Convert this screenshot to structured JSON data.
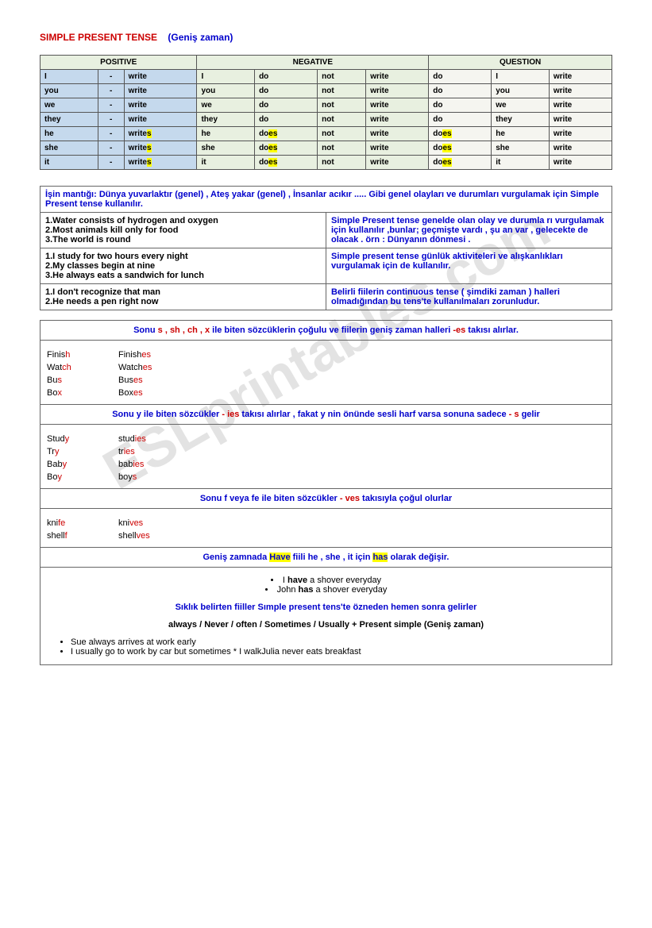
{
  "title": {
    "red": "SIMPLE PRESENT TENSE",
    "blue": "(Geniş zaman)"
  },
  "watermark": "ESLprintables.com",
  "conjTable": {
    "headers": [
      "POSITIVE",
      "NEGATIVE",
      "QUESTION"
    ],
    "rows": [
      {
        "p": [
          "I",
          "-",
          "write"
        ],
        "n": [
          "I",
          "do",
          "not",
          "write"
        ],
        "q": [
          "do",
          "I",
          "write"
        ]
      },
      {
        "p": [
          "you",
          "-",
          "write"
        ],
        "n": [
          "you",
          "do",
          "not",
          "write"
        ],
        "q": [
          "do",
          "you",
          "write"
        ]
      },
      {
        "p": [
          "we",
          "-",
          "write"
        ],
        "n": [
          "we",
          "do",
          "not",
          "write"
        ],
        "q": [
          "do",
          "we",
          "write"
        ]
      },
      {
        "p": [
          "they",
          "-",
          "write"
        ],
        "n": [
          "they",
          "do",
          "not",
          "write"
        ],
        "q": [
          "do",
          "they",
          "write"
        ]
      },
      {
        "p": [
          "he",
          "-",
          "write",
          "s"
        ],
        "n": [
          "he",
          "do",
          "es",
          "not",
          "write"
        ],
        "q": [
          "do",
          "es",
          "he",
          "write"
        ]
      },
      {
        "p": [
          "she",
          "-",
          "write",
          "s"
        ],
        "n": [
          "she",
          "do",
          "es",
          "not",
          "write"
        ],
        "q": [
          "do",
          "es",
          "she",
          "write"
        ]
      },
      {
        "p": [
          "it",
          "-",
          "write",
          "s"
        ],
        "n": [
          "it",
          "do",
          "es",
          "not",
          "write"
        ],
        "q": [
          "do",
          "es",
          "it",
          "write"
        ]
      }
    ]
  },
  "infoHead": "İşin mantığı: Dünya yuvarlaktır (genel) , Ateş yakar (genel) , İnsanlar acıkır ..... Gibi genel olayları ve durumları vurgulamak için Simple Present tense kullanılır.",
  "infoRows": [
    {
      "left": "1.Water consists of hydrogen and oxygen\n2.Most animals kill only for food\n3.The world is round",
      "right": "Simple Present tense genelde olan olay ve durumla rı vurgulamak için kullanılır ,bunlar; geçmişte vardı , şu an var , gelecekte de olacak . örn : Dünyanın dönmesi ."
    },
    {
      "left": "1.I study for two hours every night\n2.My classes begin at nine\n3.He always eats a sandwich for lunch",
      "right": "Simple present tense günlük aktiviteleri ve alışkanlıkları vurgulamak için de kullanılır."
    },
    {
      "left": "1.I don't recognize that man\n2.He needs a pen right now",
      "right": "Belirli fiilerin continuous tense ( şimdiki zaman ) halleri olmadığından bu tens'te kullanılmaları zorunludur."
    }
  ],
  "rule1": {
    "head_a": "Sonu ",
    "head_b": "s , sh , ch , x ",
    "head_c": "ile biten sözcüklerin çoğulu ve fiilerin geniş zaman halleri ",
    "head_d": "-es",
    "head_e": " takısı alırlar.",
    "words": [
      {
        "base": "Finis",
        "baseEnd": "h",
        "form": "Finish",
        "formEnd": "es"
      },
      {
        "base": "Wat",
        "baseEnd": "ch",
        "form": "Watch",
        "formEnd": "es"
      },
      {
        "base": "Bu",
        "baseEnd": "s",
        "form": "Bus",
        "formEnd": "es"
      },
      {
        "base": "Bo",
        "baseEnd": "x",
        "form": "Box",
        "formEnd": "es"
      }
    ]
  },
  "rule2": {
    "head_a": "Sonu y ile biten sözcükler ",
    "head_b": "- ies",
    "head_c": " takısı alırlar , fakat y nin önünde sesli harf varsa sonuna sadece ",
    "head_d": "- s",
    "head_e": " gelir",
    "words": [
      {
        "base": "Stud",
        "baseEnd": "y",
        "form": "stud",
        "formEnd": "ies"
      },
      {
        "base": "Tr",
        "baseEnd": "y",
        "form": "tr",
        "formEnd": "ies"
      },
      {
        "base": "Bab",
        "baseEnd": "y",
        "form": "bab",
        "formEnd": "ies"
      },
      {
        "base": "Bo",
        "baseEnd": "y",
        "form": "boy",
        "formEnd": "s"
      }
    ]
  },
  "rule3": {
    "head_a": "Sonu f veya fe ile biten sözcükler ",
    "head_b": "- ves",
    "head_c": " takısıyla çoğul olurlar",
    "words": [
      {
        "base": "kni",
        "baseEnd": "fe",
        "form": "kni",
        "formEnd": "ves"
      },
      {
        "base": "shell",
        "baseEnd": "f",
        "form": "shell",
        "formEnd": "ves"
      }
    ]
  },
  "rule4": {
    "head_a": "Geniş zamnada ",
    "head_b": "Have",
    "head_c": " fiili he , she , it için ",
    "head_d": "has",
    "head_e": " olarak değişir.",
    "bullets": [
      "I have a shover everyday",
      "John has a shover everyday"
    ],
    "sub": "Sıklık belirten fiiller Sımple present tens'te özneden hemen sonra gelirler",
    "formula": "always / Never / often / Sometimes / Usually + Present simple (Geniş zaman)",
    "examples": [
      "Sue always arrives at work early",
      "I usually go to work by car but sometimes    * I walkJulia never eats breakfast"
    ]
  }
}
